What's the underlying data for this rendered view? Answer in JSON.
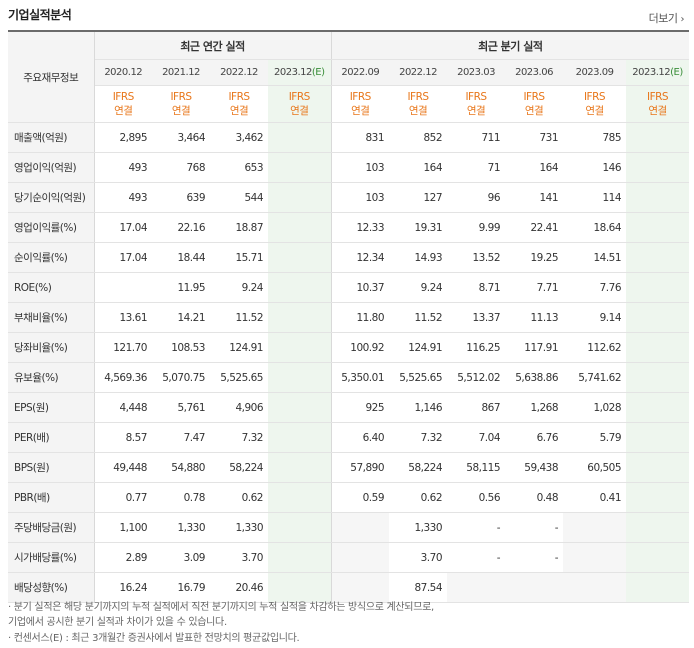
{
  "header": {
    "title": "기업실적분석",
    "more_label": "더보기"
  },
  "table": {
    "corner_label": "주요재무정보",
    "annual_header": "최근 연간 실적",
    "quarter_header": "최근 분기 실적",
    "annual_periods": [
      "2020.12",
      "2021.12",
      "2022.12"
    ],
    "annual_estimate": {
      "period": "2023.12",
      "mark": "(E)"
    },
    "quarter_periods": [
      "2022.09",
      "2022.12",
      "2023.03",
      "2023.06",
      "2023.09"
    ],
    "quarter_estimate": {
      "period": "2023.12",
      "mark": "(E)"
    },
    "basis_top": "IFRS",
    "basis_bottom": "연결",
    "rows": [
      {
        "label": "매출액(억원)",
        "annual": [
          "2,895",
          "3,464",
          "3,462",
          ""
        ],
        "quarter": [
          "831",
          "852",
          "711",
          "731",
          "785",
          ""
        ]
      },
      {
        "label": "영업이익(억원)",
        "annual": [
          "493",
          "768",
          "653",
          ""
        ],
        "quarter": [
          "103",
          "164",
          "71",
          "164",
          "146",
          ""
        ]
      },
      {
        "label": "당기순이익(억원)",
        "annual": [
          "493",
          "639",
          "544",
          ""
        ],
        "quarter": [
          "103",
          "127",
          "96",
          "141",
          "114",
          ""
        ]
      },
      {
        "label": "영업이익률(%)",
        "annual": [
          "17.04",
          "22.16",
          "18.87",
          ""
        ],
        "quarter": [
          "12.33",
          "19.31",
          "9.99",
          "22.41",
          "18.64",
          ""
        ]
      },
      {
        "label": "순이익률(%)",
        "annual": [
          "17.04",
          "18.44",
          "15.71",
          ""
        ],
        "quarter": [
          "12.34",
          "14.93",
          "13.52",
          "19.25",
          "14.51",
          ""
        ]
      },
      {
        "label": "ROE(%)",
        "annual": [
          "",
          "11.95",
          "9.24",
          ""
        ],
        "quarter": [
          "10.37",
          "9.24",
          "8.71",
          "7.71",
          "7.76",
          ""
        ]
      },
      {
        "label": "부채비율(%)",
        "annual": [
          "13.61",
          "14.21",
          "11.52",
          ""
        ],
        "quarter": [
          "11.80",
          "11.52",
          "13.37",
          "11.13",
          "9.14",
          ""
        ]
      },
      {
        "label": "당좌비율(%)",
        "annual": [
          "121.70",
          "108.53",
          "124.91",
          ""
        ],
        "quarter": [
          "100.92",
          "124.91",
          "116.25",
          "117.91",
          "112.62",
          ""
        ]
      },
      {
        "label": "유보율(%)",
        "annual": [
          "4,569.36",
          "5,070.75",
          "5,525.65",
          ""
        ],
        "quarter": [
          "5,350.01",
          "5,525.65",
          "5,512.02",
          "5,638.86",
          "5,741.62",
          ""
        ]
      },
      {
        "label": "EPS(원)",
        "annual": [
          "4,448",
          "5,761",
          "4,906",
          ""
        ],
        "quarter": [
          "925",
          "1,146",
          "867",
          "1,268",
          "1,028",
          ""
        ]
      },
      {
        "label": "PER(배)",
        "annual": [
          "8.57",
          "7.47",
          "7.32",
          ""
        ],
        "quarter": [
          "6.40",
          "7.32",
          "7.04",
          "6.76",
          "5.79",
          ""
        ]
      },
      {
        "label": "BPS(원)",
        "annual": [
          "49,448",
          "54,880",
          "58,224",
          ""
        ],
        "quarter": [
          "57,890",
          "58,224",
          "58,115",
          "59,438",
          "60,505",
          ""
        ]
      },
      {
        "label": "PBR(배)",
        "annual": [
          "0.77",
          "0.78",
          "0.62",
          ""
        ],
        "quarter": [
          "0.59",
          "0.62",
          "0.56",
          "0.48",
          "0.41",
          ""
        ]
      },
      {
        "label": "주당배당금(원)",
        "annual": [
          "1,100",
          "1,330",
          "1,330",
          ""
        ],
        "quarter": [
          "",
          "1,330",
          "-",
          "-",
          "",
          ""
        ]
      },
      {
        "label": "시가배당률(%)",
        "annual": [
          "2.89",
          "3.09",
          "3.70",
          ""
        ],
        "quarter": [
          "",
          "3.70",
          "-",
          "-",
          "",
          ""
        ]
      },
      {
        "label": "배당성향(%)",
        "annual": [
          "16.24",
          "16.79",
          "20.46",
          ""
        ],
        "quarter": [
          "",
          "87.54",
          "",
          "",
          "",
          ""
        ]
      }
    ]
  },
  "notes": [
    "· 분기 실적은 해당 분기까지의 누적 실적에서 직전 분기까지의 누적 실적을 차감하는 방식으로 계산되므로,",
    "  기업에서 공시한 분기 실적과 차이가 있을 수 있습니다.",
    "· 컨센서스(E) : 최근 3개월간 증권사에서 발표한 전망치의 평균값입니다."
  ],
  "colors": {
    "ifrs": "#e8761a",
    "estimate": "#3a8f3a",
    "estimate_bg": "#eef6ee"
  },
  "icons": {
    "more": "chevron-right-icon"
  }
}
